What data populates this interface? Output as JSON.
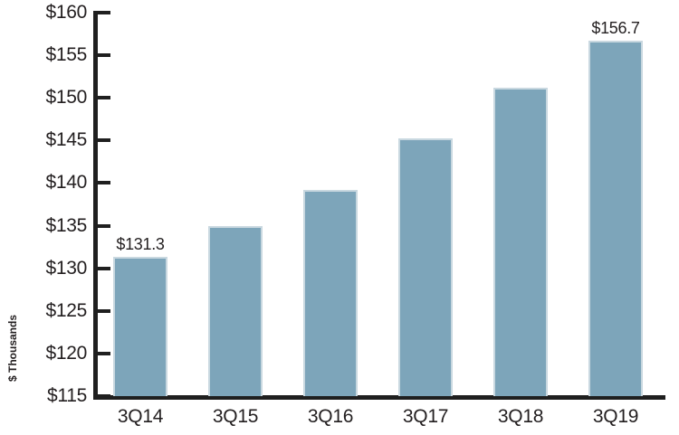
{
  "chart_data": {
    "type": "bar",
    "title": "",
    "xlabel": "",
    "ylabel": "$ Thousands",
    "categories": [
      "3Q14",
      "3Q15",
      "3Q16",
      "3Q17",
      "3Q18",
      "3Q19"
    ],
    "values": [
      131.3,
      135.0,
      139.2,
      145.2,
      151.2,
      156.7
    ],
    "data_labels": [
      "$131.3",
      "",
      "",
      "",
      "",
      "$156.7"
    ],
    "ylim": [
      115,
      160
    ],
    "ytick_step": 5,
    "ytick_labels": [
      "$160",
      "$155",
      "$150",
      "$145",
      "$140",
      "$135",
      "$130",
      "$125",
      "$120",
      "$115"
    ],
    "grid": false,
    "legend": "none",
    "colors": {
      "bar_fill": "#7da5ba",
      "bar_edge": "#c9d8e0",
      "axis": "#1f1f1f",
      "text": "#231f20"
    }
  }
}
